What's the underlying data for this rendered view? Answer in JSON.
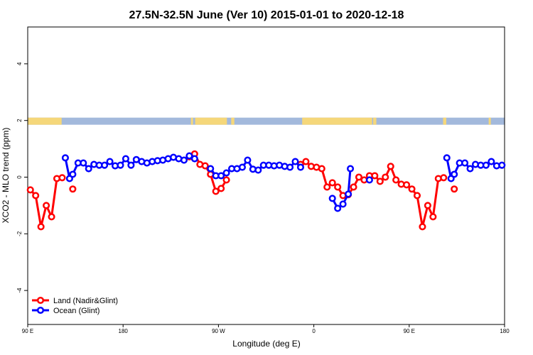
{
  "chart_data": {
    "type": "line",
    "title": "27.5N-32.5N June (Ver 10)   2015-01-01 to 2020-12-18",
    "xlabel": "Longitude (deg E)",
    "ylabel": "XCO2 - MLO trend (ppm)",
    "xlim": [
      90,
      540
    ],
    "ylim": [
      -5.2,
      5.3
    ],
    "x_ticks": [
      {
        "value": 90,
        "label": "90 E"
      },
      {
        "value": 180,
        "label": "180"
      },
      {
        "value": 270,
        "label": "90 W"
      },
      {
        "value": 360,
        "label": "0"
      },
      {
        "value": 450,
        "label": "90 E"
      },
      {
        "value": 540,
        "label": "180"
      }
    ],
    "y_ticks": [
      {
        "value": -4,
        "label": "-4"
      },
      {
        "value": -2,
        "label": "-2"
      },
      {
        "value": 0,
        "label": "0"
      },
      {
        "value": 2,
        "label": "2"
      },
      {
        "value": 4,
        "label": "4"
      }
    ],
    "surface_band": {
      "y_min": 1.85,
      "y_max": 2.1,
      "ocean_color": "#a3b9dc",
      "land_color": "#f5d77a",
      "land_segments": [
        [
          90,
          122
        ],
        [
          244,
          246
        ],
        [
          248,
          278
        ],
        [
          282,
          285
        ],
        [
          349,
          415
        ],
        [
          416,
          419
        ],
        [
          482,
          485
        ],
        [
          525,
          527
        ]
      ]
    },
    "series": [
      {
        "name": "Land (Nadir&Glint)",
        "color": "#ff0000",
        "segments": [
          [
            [
              92.5,
              -0.45
            ],
            [
              97.5,
              -0.65
            ],
            [
              102.5,
              -1.75
            ],
            [
              107.5,
              -1.0
            ],
            [
              112.5,
              -1.4
            ],
            [
              117.5,
              -0.05
            ],
            [
              122.5,
              -0.02
            ]
          ],
          [
            [
              132.5,
              -0.42
            ]
          ],
          [
            [
              242.5,
              0.72
            ],
            [
              247.5,
              0.82
            ],
            [
              252.5,
              0.45
            ],
            [
              257.5,
              0.4
            ],
            [
              262.5,
              0.1
            ],
            [
              267.5,
              -0.5
            ],
            [
              272.5,
              -0.4
            ],
            [
              277.5,
              -0.1
            ]
          ],
          [
            [
              347.5,
              0.45
            ],
            [
              352.5,
              0.55
            ],
            [
              357.5,
              0.38
            ],
            [
              362.5,
              0.35
            ],
            [
              367.5,
              0.3
            ],
            [
              372.5,
              -0.35
            ],
            [
              377.5,
              -0.2
            ],
            [
              382.5,
              -0.35
            ],
            [
              387.5,
              -0.65
            ],
            [
              392.5,
              -0.62
            ],
            [
              397.5,
              -0.35
            ],
            [
              402.5,
              0.0
            ],
            [
              407.5,
              -0.1
            ],
            [
              412.5,
              0.05
            ],
            [
              417.5,
              0.05
            ],
            [
              422.5,
              -0.15
            ],
            [
              427.5,
              0.0
            ],
            [
              432.5,
              0.38
            ],
            [
              437.5,
              -0.1
            ],
            [
              442.5,
              -0.25
            ],
            [
              447.5,
              -0.27
            ],
            [
              452.5,
              -0.42
            ],
            [
              457.5,
              -0.65
            ],
            [
              462.5,
              -1.75
            ],
            [
              467.5,
              -1.0
            ],
            [
              472.5,
              -1.4
            ],
            [
              477.5,
              -0.05
            ],
            [
              482.5,
              -0.02
            ]
          ],
          [
            [
              492.5,
              -0.42
            ]
          ]
        ]
      },
      {
        "name": "Ocean (Glint)",
        "color": "#0000ff",
        "segments": [
          [
            [
              125.5,
              0.68
            ],
            [
              129.5,
              -0.05
            ],
            [
              132.5,
              0.1
            ],
            [
              137.5,
              0.5
            ],
            [
              142.5,
              0.5
            ],
            [
              147.5,
              0.3
            ],
            [
              152.5,
              0.45
            ],
            [
              157.5,
              0.42
            ],
            [
              162.5,
              0.42
            ],
            [
              167.5,
              0.55
            ],
            [
              172.5,
              0.4
            ],
            [
              177.5,
              0.42
            ],
            [
              182.5,
              0.65
            ],
            [
              187.5,
              0.42
            ],
            [
              192.5,
              0.62
            ],
            [
              197.5,
              0.55
            ],
            [
              202.5,
              0.5
            ],
            [
              207.5,
              0.55
            ],
            [
              212.5,
              0.58
            ],
            [
              217.5,
              0.6
            ],
            [
              222.5,
              0.65
            ],
            [
              227.5,
              0.7
            ],
            [
              232.5,
              0.65
            ],
            [
              237.5,
              0.6
            ],
            [
              242.5,
              0.75
            ],
            [
              247.5,
              0.65
            ]
          ],
          [
            [
              262.5,
              0.3
            ],
            [
              267.5,
              0.05
            ],
            [
              272.5,
              0.05
            ],
            [
              277.5,
              0.15
            ],
            [
              282.5,
              0.3
            ],
            [
              287.5,
              0.3
            ],
            [
              292.5,
              0.35
            ],
            [
              297.5,
              0.6
            ],
            [
              302.5,
              0.28
            ],
            [
              307.5,
              0.25
            ],
            [
              312.5,
              0.42
            ],
            [
              317.5,
              0.42
            ],
            [
              322.5,
              0.4
            ],
            [
              327.5,
              0.42
            ],
            [
              332.5,
              0.38
            ],
            [
              337.5,
              0.35
            ],
            [
              342.5,
              0.55
            ],
            [
              347.5,
              0.35
            ]
          ],
          [
            [
              377.5,
              -0.75
            ],
            [
              382.5,
              -1.1
            ],
            [
              387.5,
              -0.95
            ],
            [
              392.5,
              -0.6
            ],
            [
              394.5,
              0.3
            ]
          ],
          [
            [
              412.5,
              -0.1
            ]
          ],
          [
            [
              485.5,
              0.68
            ],
            [
              489.5,
              -0.05
            ],
            [
              492.5,
              0.1
            ],
            [
              497.5,
              0.5
            ],
            [
              502.5,
              0.5
            ],
            [
              507.5,
              0.3
            ],
            [
              512.5,
              0.45
            ],
            [
              517.5,
              0.42
            ],
            [
              522.5,
              0.42
            ],
            [
              527.5,
              0.55
            ],
            [
              532.5,
              0.4
            ],
            [
              537.5,
              0.42
            ]
          ]
        ]
      }
    ]
  }
}
